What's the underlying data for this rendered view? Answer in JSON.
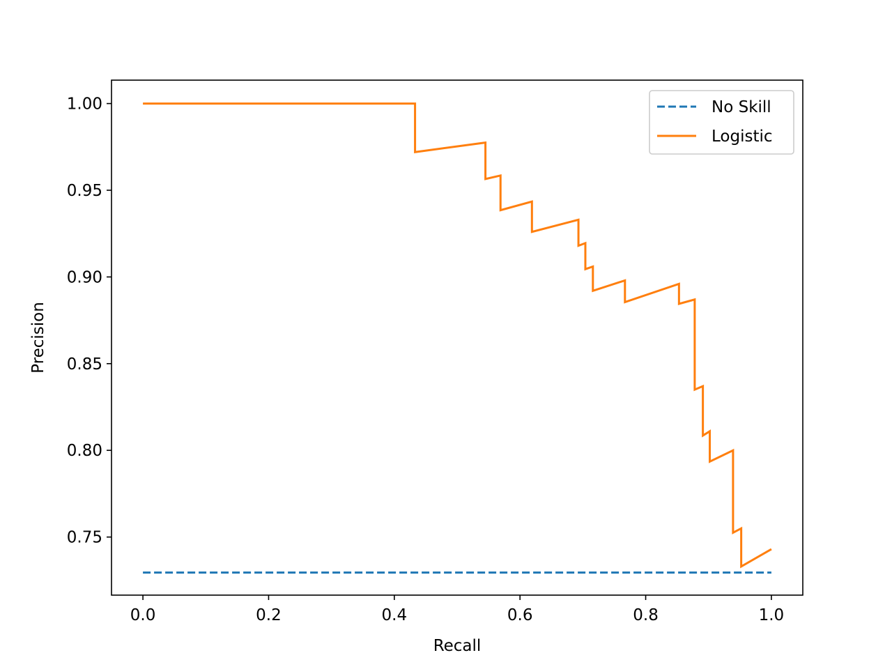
{
  "chart_data": {
    "type": "line",
    "title": "",
    "xlabel": "Recall",
    "ylabel": "Precision",
    "xlim": [
      -0.05,
      1.05
    ],
    "ylim": [
      0.7165,
      1.0135
    ],
    "xticks": [
      0.0,
      0.2,
      0.4,
      0.6,
      0.8,
      1.0
    ],
    "xtick_labels": [
      "0.0",
      "0.2",
      "0.4",
      "0.6",
      "0.8",
      "1.0"
    ],
    "yticks": [
      0.75,
      0.8,
      0.85,
      0.9,
      0.95,
      1.0
    ],
    "ytick_labels": [
      "0.75",
      "0.80",
      "0.85",
      "0.90",
      "0.95",
      "1.00"
    ],
    "grid": false,
    "legend_position": "top-right",
    "series": [
      {
        "name": "No Skill",
        "color": "#1f77b4",
        "style": "dashed",
        "x": [
          0.0,
          1.0
        ],
        "y": [
          0.7295,
          0.7295
        ]
      },
      {
        "name": "Logistic",
        "color": "#ff7f0e",
        "style": "solid",
        "x": [
          0.0,
          0.433,
          0.433,
          0.545,
          0.545,
          0.569,
          0.569,
          0.619,
          0.619,
          0.693,
          0.693,
          0.704,
          0.704,
          0.716,
          0.716,
          0.767,
          0.767,
          0.853,
          0.853,
          0.878,
          0.878,
          0.891,
          0.891,
          0.902,
          0.902,
          0.939,
          0.939,
          0.952,
          0.952,
          1.0
        ],
        "y": [
          1.0,
          1.0,
          0.972,
          0.9775,
          0.9565,
          0.9585,
          0.9385,
          0.9435,
          0.926,
          0.933,
          0.918,
          0.9195,
          0.9045,
          0.906,
          0.892,
          0.898,
          0.8855,
          0.896,
          0.8845,
          0.887,
          0.835,
          0.837,
          0.8085,
          0.811,
          0.7935,
          0.8,
          0.7525,
          0.755,
          0.733,
          0.743
        ]
      }
    ]
  }
}
